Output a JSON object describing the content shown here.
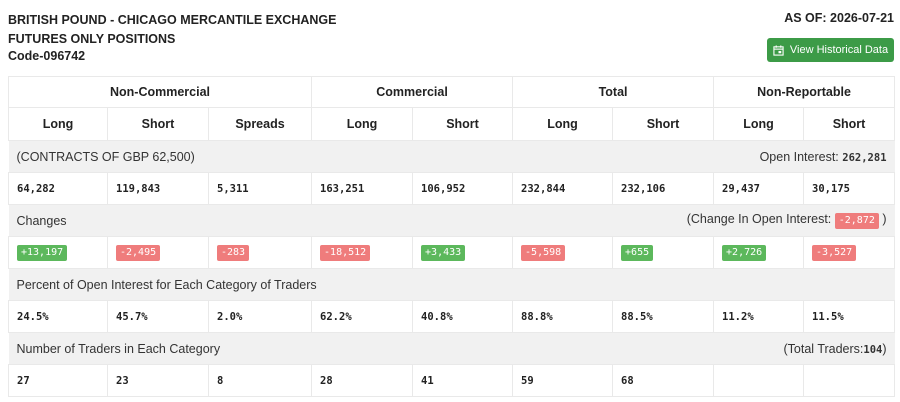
{
  "header": {
    "title_line1": "BRITISH POUND - CHICAGO MERCANTILE EXCHANGE",
    "title_line2": "FUTURES ONLY POSITIONS",
    "code": "Code-096742",
    "as_of": "AS OF: 2026-07-21",
    "button_label": "View Historical Data"
  },
  "groups": [
    "Non-Commercial",
    "Commercial",
    "Total",
    "Non-Reportable"
  ],
  "columns": [
    "Long",
    "Short",
    "Spreads",
    "Long",
    "Short",
    "Long",
    "Short",
    "Long",
    "Short"
  ],
  "contracts": {
    "label": "(CONTRACTS OF GBP 62,500)",
    "oi_label": "Open Interest:",
    "oi_value": "262,281",
    "values": [
      "64,282",
      "119,843",
      "5,311",
      "163,251",
      "106,952",
      "232,844",
      "232,106",
      "29,437",
      "30,175"
    ]
  },
  "changes": {
    "label": "Changes",
    "oi_prefix": "(Change In Open Interest:",
    "oi_value": "-2,872",
    "oi_suffix": ")",
    "values": [
      "+13,197",
      "-2,495",
      "-283",
      "-18,512",
      "+3,433",
      "-5,598",
      "+655",
      "+2,726",
      "-3,527"
    ],
    "positive_color": "#5cb85c",
    "negative_color": "#ef7c7c"
  },
  "percent": {
    "label": "Percent of Open Interest for Each Category of Traders",
    "values": [
      "24.5%",
      "45.7%",
      "2.0%",
      "62.2%",
      "40.8%",
      "88.8%",
      "88.5%",
      "11.2%",
      "11.5%"
    ]
  },
  "traders": {
    "label": "Number of Traders in Each Category",
    "total_prefix": "(Total Traders:",
    "total_value": "104",
    "total_suffix": ")",
    "values": [
      "27",
      "23",
      "8",
      "28",
      "41",
      "59",
      "68",
      "",
      ""
    ]
  },
  "accent_color": "#3c9b47"
}
